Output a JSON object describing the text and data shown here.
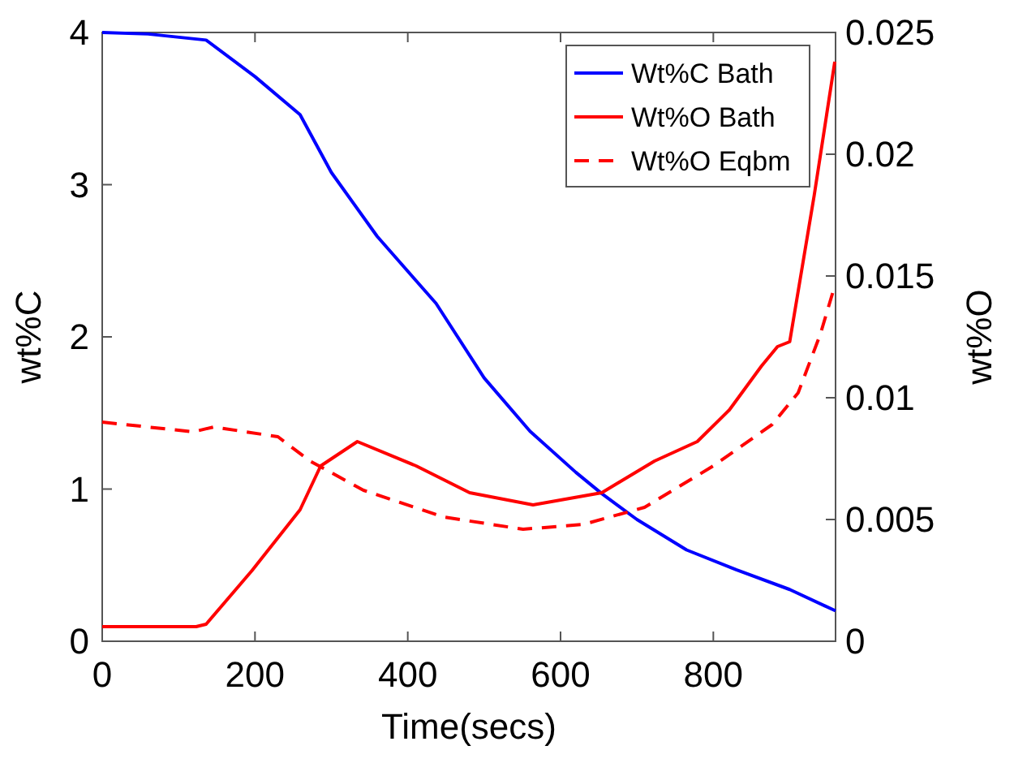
{
  "chart_data": {
    "type": "line",
    "xlabel": "Time(secs)",
    "ylabel": "wt%C",
    "y2label": "wt%O",
    "xlim": [
      0,
      960
    ],
    "xticks": [
      0,
      200,
      400,
      600,
      800
    ],
    "ylim": [
      0,
      4
    ],
    "yticks": [
      0,
      1,
      2,
      3,
      4
    ],
    "y2lim": [
      0,
      0.025
    ],
    "y2ticks": [
      0,
      0.005,
      0.01,
      0.015,
      0.02,
      0.025
    ],
    "legend": "top right",
    "grid": false,
    "series": [
      {
        "name": "Wt%C Bath",
        "color": "#0000ff",
        "line_style": "solid",
        "x": [
          0,
          60,
          136,
          200,
          259,
          300,
          360,
          437,
          500,
          560,
          620,
          654,
          700,
          765,
          830,
          900,
          960
        ],
        "values": [
          4,
          3.99,
          3.95,
          3.71,
          3.46,
          3.08,
          2.66,
          2.22,
          1.73,
          1.38,
          1.11,
          0.97,
          0.8,
          0.6,
          0.47,
          0.34,
          0.2
        ]
      },
      {
        "name": "Wt%O Bath",
        "color": "#ff0000",
        "line_style": "solid",
        "axis": "y2",
        "x": [
          0,
          123,
          136,
          196,
          259,
          286,
          334,
          411,
          481,
          564,
          654,
          723,
          779,
          821,
          863,
          884,
          900,
          932,
          959
        ],
        "values": [
          0.0006,
          0.0006,
          0.0007,
          0.0029,
          0.0054,
          0.0072,
          0.0082,
          0.0072,
          0.0061,
          0.0056,
          0.0061,
          0.0074,
          0.0082,
          0.0095,
          0.0113,
          0.0121,
          0.0123,
          0.0183,
          0.0238
        ]
      },
      {
        "name": "Wt%O Eqbm",
        "color": "#ff0000",
        "line_style": "dashed",
        "axis": "y2",
        "x": [
          0,
          119,
          146,
          230,
          272,
          342,
          447,
          551,
          630,
          710,
          800,
          877,
          911,
          940,
          959
        ],
        "values": [
          0.009,
          0.0086,
          0.0088,
          0.0084,
          0.0074,
          0.0062,
          0.0051,
          0.0046,
          0.0048,
          0.0055,
          0.0072,
          0.0089,
          0.0102,
          0.0126,
          0.0146
        ]
      }
    ]
  }
}
